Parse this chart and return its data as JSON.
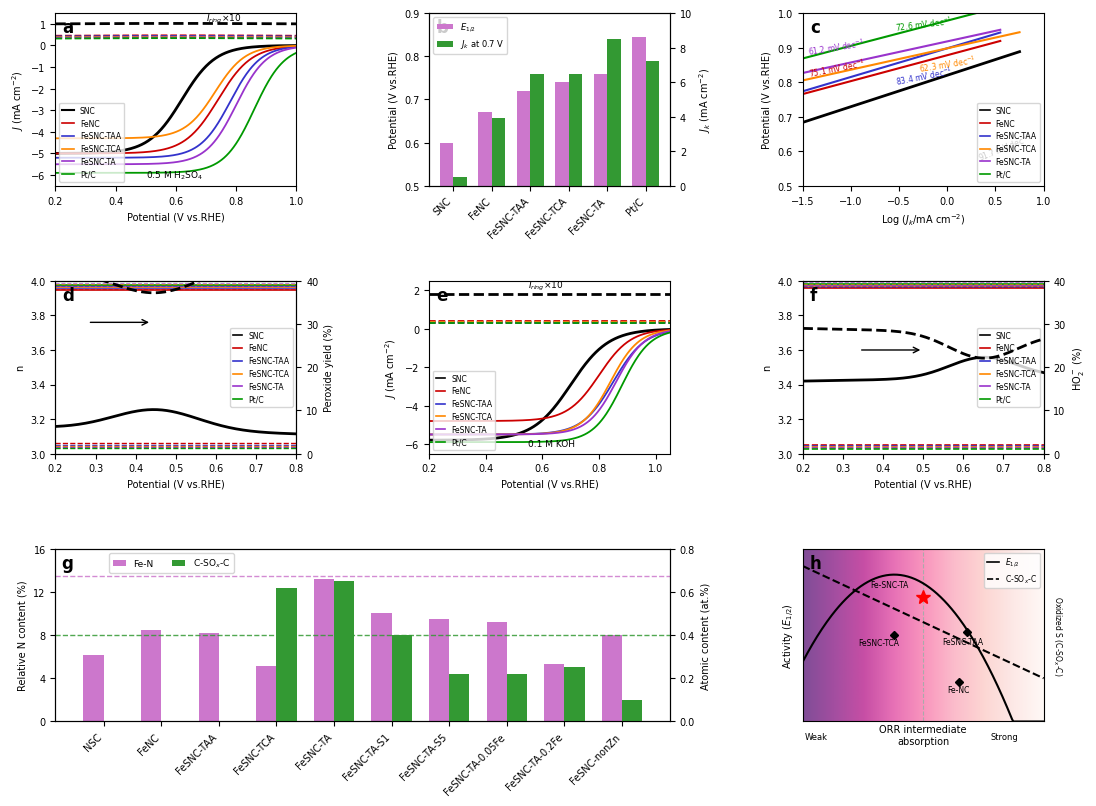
{
  "colors": {
    "SNC": "#000000",
    "FeNC": "#cc0000",
    "FeSNC-TAA": "#3333cc",
    "FeSNC-TCA": "#ff8800",
    "FeSNC-TA": "#9933cc",
    "Pt/C": "#009900"
  },
  "panel_b": {
    "categories": [
      "SNC",
      "FeNC",
      "FeSNC-TAA",
      "FeSNC-TCA",
      "FeSNC-TA",
      "Pt/C"
    ],
    "E_half": [
      0.6,
      0.67,
      0.72,
      0.74,
      0.76,
      0.845
    ],
    "Jk_values": [
      0.5,
      3.9,
      6.5,
      6.5,
      8.5,
      7.2
    ],
    "bar_color_pink": "#cc77cc",
    "bar_color_green": "#339933"
  },
  "panel_g": {
    "categories": [
      "NSC",
      "FeNC",
      "FeSNC-TAA",
      "FeSNC-TCA",
      "FeSNC-TA",
      "FeSNC-TA-S1",
      "FeSNC-TA-S5",
      "FeSNC-TA-0.05Fe",
      "FeSNC-TA-0.2Fe",
      "FeSNC-nonZn"
    ],
    "FeN_values": [
      6.2,
      8.5,
      8.2,
      5.1,
      13.2,
      10.0,
      9.5,
      9.2,
      5.3,
      8.0
    ],
    "csox_at": [
      0.0,
      0.0,
      0.0,
      0.62,
      0.65,
      0.4,
      0.22,
      0.22,
      0.25,
      0.1
    ],
    "dashed_pink": 13.5,
    "dashed_green": 0.4,
    "bar_color_pink": "#cc77cc",
    "bar_color_green": "#339933"
  }
}
